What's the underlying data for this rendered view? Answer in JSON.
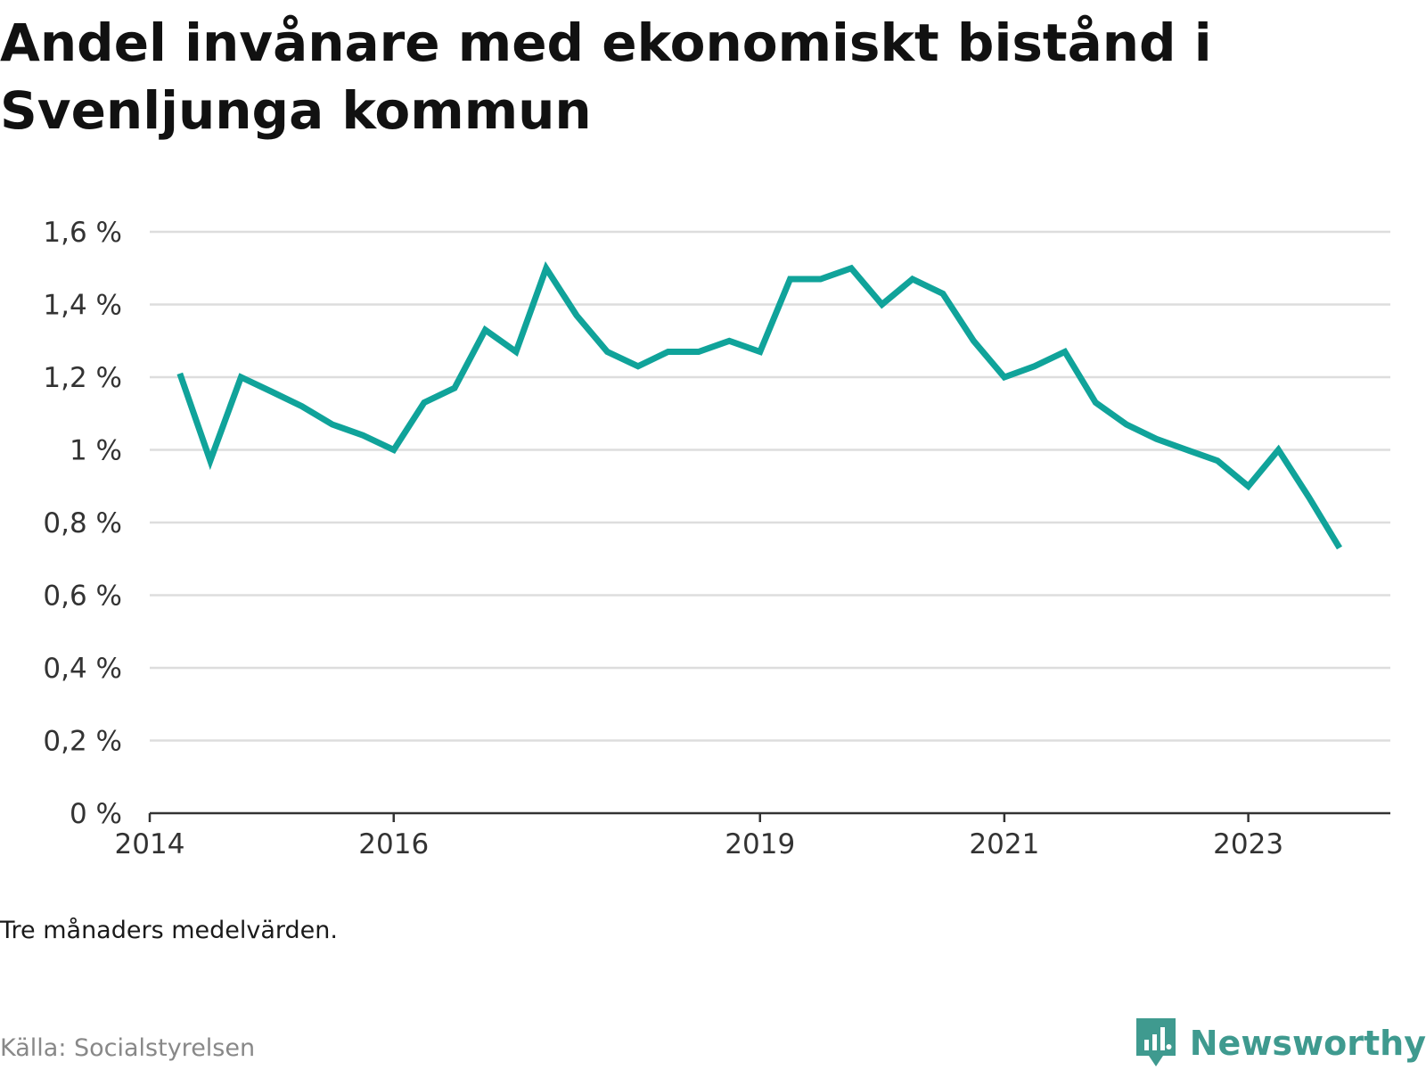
{
  "title": "Andel invånare med ekonomiskt bistånd i Svenljunga kommun",
  "note": "Tre månaders medelvärden.",
  "source": "Källa: Socialstyrelsen",
  "brand": {
    "name": "Newsworthy",
    "icon": "newsworthy-logo-icon",
    "color": "#3f9a8f"
  },
  "colors": {
    "line": "#10a39a",
    "grid": "#dddddd",
    "axis": "#333333"
  },
  "chart_data": {
    "type": "line",
    "title": "Andel invånare med ekonomiskt bistånd i Svenljunga kommun",
    "xlabel": "",
    "ylabel": "",
    "ylim": [
      0,
      1.6
    ],
    "xlim": [
      "2014-01-01",
      "2024-03-01"
    ],
    "grid": true,
    "legend": "none",
    "y_ticks": [
      {
        "value": 0,
        "label": "0 %"
      },
      {
        "value": 0.2,
        "label": "0,2 %"
      },
      {
        "value": 0.4,
        "label": "0,4 %"
      },
      {
        "value": 0.6,
        "label": "0,6 %"
      },
      {
        "value": 0.8,
        "label": "0,8 %"
      },
      {
        "value": 1,
        "label": "1 %"
      },
      {
        "value": 1.2,
        "label": "1,2 %"
      },
      {
        "value": 1.4,
        "label": "1,4 %"
      },
      {
        "value": 1.6,
        "label": "1,6 %"
      }
    ],
    "x_ticks": [
      {
        "value": "2014-01-01",
        "label": "2014"
      },
      {
        "value": "2016-01-01",
        "label": "2016"
      },
      {
        "value": "2019-01-01",
        "label": "2019"
      },
      {
        "value": "2021-01-01",
        "label": "2021"
      },
      {
        "value": "2023-01-01",
        "label": "2023"
      }
    ],
    "series": [
      {
        "color": "#10a39a",
        "points": [
          {
            "x": "2014-04-01",
            "y": 1.21
          },
          {
            "x": "2014-07-01",
            "y": 0.97
          },
          {
            "x": "2014-10-01",
            "y": 1.2
          },
          {
            "x": "2015-01-01",
            "y": 1.16
          },
          {
            "x": "2015-04-01",
            "y": 1.12
          },
          {
            "x": "2015-07-01",
            "y": 1.07
          },
          {
            "x": "2015-10-01",
            "y": 1.04
          },
          {
            "x": "2016-01-01",
            "y": 1.0
          },
          {
            "x": "2016-04-01",
            "y": 1.13
          },
          {
            "x": "2016-07-01",
            "y": 1.17
          },
          {
            "x": "2016-10-01",
            "y": 1.33
          },
          {
            "x": "2017-01-01",
            "y": 1.27
          },
          {
            "x": "2017-04-01",
            "y": 1.5
          },
          {
            "x": "2017-07-01",
            "y": 1.37
          },
          {
            "x": "2017-10-01",
            "y": 1.27
          },
          {
            "x": "2018-01-01",
            "y": 1.23
          },
          {
            "x": "2018-04-01",
            "y": 1.27
          },
          {
            "x": "2018-07-01",
            "y": 1.27
          },
          {
            "x": "2018-10-01",
            "y": 1.3
          },
          {
            "x": "2019-01-01",
            "y": 1.27
          },
          {
            "x": "2019-04-01",
            "y": 1.47
          },
          {
            "x": "2019-07-01",
            "y": 1.47
          },
          {
            "x": "2019-10-01",
            "y": 1.5
          },
          {
            "x": "2020-01-01",
            "y": 1.4
          },
          {
            "x": "2020-04-01",
            "y": 1.47
          },
          {
            "x": "2020-07-01",
            "y": 1.43
          },
          {
            "x": "2020-10-01",
            "y": 1.3
          },
          {
            "x": "2021-01-01",
            "y": 1.2
          },
          {
            "x": "2021-04-01",
            "y": 1.23
          },
          {
            "x": "2021-07-01",
            "y": 1.27
          },
          {
            "x": "2021-10-01",
            "y": 1.13
          },
          {
            "x": "2022-01-01",
            "y": 1.07
          },
          {
            "x": "2022-04-01",
            "y": 1.03
          },
          {
            "x": "2022-07-01",
            "y": 1.0
          },
          {
            "x": "2022-10-01",
            "y": 0.97
          },
          {
            "x": "2023-01-01",
            "y": 0.9
          },
          {
            "x": "2023-04-01",
            "y": 1.0
          },
          {
            "x": "2023-07-01",
            "y": 0.87
          },
          {
            "x": "2023-10-01",
            "y": 0.73
          }
        ]
      }
    ]
  }
}
